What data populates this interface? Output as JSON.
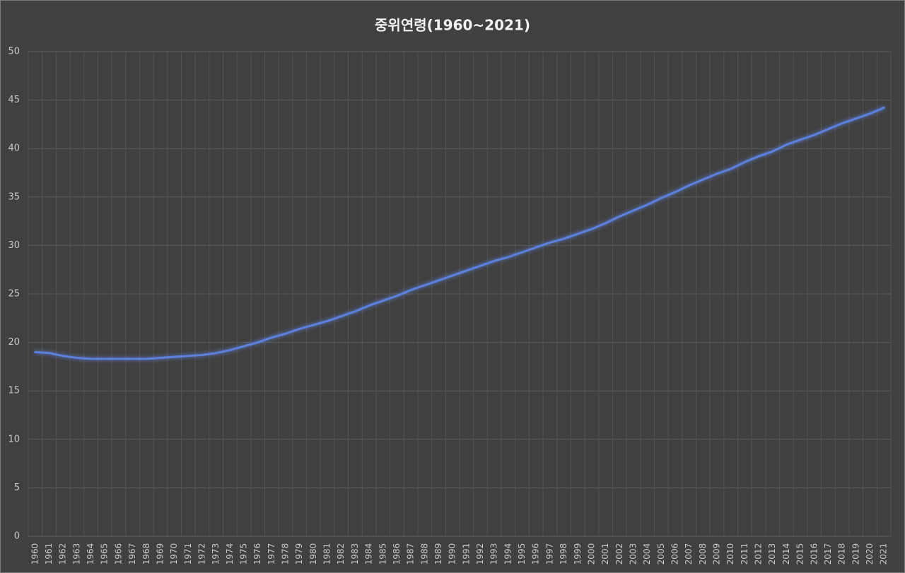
{
  "chart_data": {
    "type": "line",
    "title": "중위연령(1960~2021)",
    "categories": [
      "1960",
      "1961",
      "1962",
      "1963",
      "1964",
      "1965",
      "1966",
      "1967",
      "1968",
      "1969",
      "1970",
      "1971",
      "1972",
      "1973",
      "1974",
      "1975",
      "1976",
      "1977",
      "1978",
      "1979",
      "1980",
      "1981",
      "1982",
      "1983",
      "1984",
      "1985",
      "1986",
      "1987",
      "1988",
      "1989",
      "1990",
      "1991",
      "1992",
      "1993",
      "1994",
      "1995",
      "1996",
      "1997",
      "1998",
      "1999",
      "2000",
      "2001",
      "2002",
      "2003",
      "2004",
      "2005",
      "2006",
      "2007",
      "2008",
      "2009",
      "2010",
      "2011",
      "2012",
      "2013",
      "2014",
      "2015",
      "2016",
      "2017",
      "2018",
      "2019",
      "2020",
      "2021"
    ],
    "values": [
      19.0,
      18.9,
      18.6,
      18.4,
      18.3,
      18.3,
      18.3,
      18.3,
      18.3,
      18.4,
      18.5,
      18.6,
      18.7,
      18.9,
      19.2,
      19.6,
      20.0,
      20.5,
      20.9,
      21.4,
      21.8,
      22.2,
      22.7,
      23.2,
      23.8,
      24.3,
      24.8,
      25.4,
      25.9,
      26.4,
      26.9,
      27.4,
      27.9,
      28.4,
      28.8,
      29.3,
      29.8,
      30.3,
      30.7,
      31.2,
      31.7,
      32.3,
      33.0,
      33.6,
      34.2,
      34.9,
      35.5,
      36.2,
      36.8,
      37.4,
      37.9,
      38.6,
      39.2,
      39.7,
      40.4,
      40.9,
      41.4,
      42.0,
      42.6,
      43.1,
      43.6,
      44.2
    ],
    "color": "#5b80dc",
    "ylim": [
      0,
      50
    ],
    "yticks": [
      0,
      5,
      10,
      15,
      20,
      25,
      30,
      35,
      40,
      45,
      50
    ],
    "grid": true
  }
}
